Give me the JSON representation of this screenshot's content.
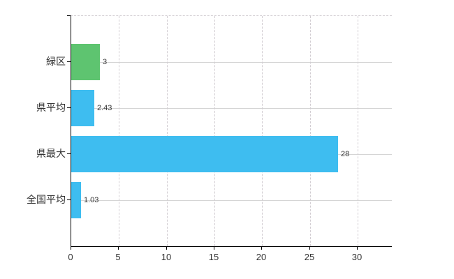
{
  "chart_data": {
    "type": "bar",
    "orientation": "horizontal",
    "title": "",
    "xlabel": "",
    "ylabel": "",
    "categories": [
      "緑区",
      "県平均",
      "県最大",
      "全国平均"
    ],
    "values": [
      3,
      2.43,
      28,
      1.03
    ],
    "value_labels": [
      "3",
      "2.43",
      "28",
      "1.03"
    ],
    "bar_colors": [
      "#5ec470",
      "#3ebdf0",
      "#3ebdf0",
      "#3ebdf0"
    ],
    "xlim": [
      0,
      33.6
    ],
    "xticks": [
      0,
      5,
      10,
      15,
      20,
      25,
      30
    ],
    "grid": true,
    "legend": "none",
    "colors": {
      "axis": "#000000",
      "grid": "#d5d5d5",
      "text": "#333333",
      "background": "#ffffff"
    }
  }
}
